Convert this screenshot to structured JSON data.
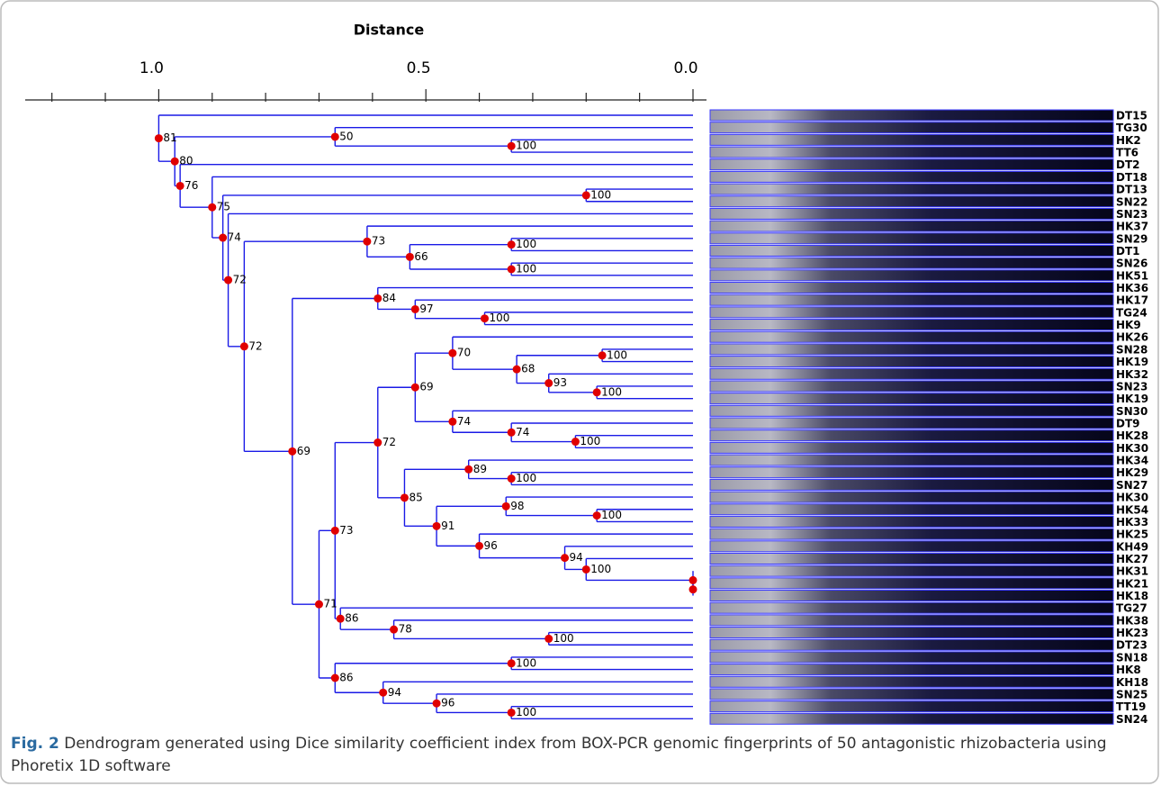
{
  "chart_data": {
    "type": "dendrogram",
    "title": "Distance",
    "xlim": [
      1.25,
      0
    ],
    "xticks": [
      {
        "value": 1,
        "label": "1.0"
      },
      {
        "value": 0.5,
        "label": "0.5"
      },
      {
        "value": 0,
        "label": "0.0"
      }
    ],
    "minor_xticks": [
      1.2,
      1.1,
      0.9,
      0.8,
      0.7,
      0.6,
      0.4,
      0.3,
      0.2,
      0.1
    ],
    "line_color": "#1a1ae6",
    "node_color": "#e00000",
    "leaves": [
      "DT15",
      "TG30",
      "HK2",
      "TT6",
      "DT2",
      "DT18",
      "DT13",
      "SN22",
      "SN23",
      "HK37",
      "SN29",
      "DT1",
      "SN26",
      "HK51",
      "HK36",
      "HK17",
      "TG24",
      "HK9",
      "HK26",
      "SN28",
      "HK19",
      "HK32",
      "SN23",
      "HK19",
      "SN30",
      "DT9",
      "HK28",
      "HK30",
      "HK34",
      "HK29",
      "SN27",
      "HK30",
      "HK54",
      "HK33",
      "HK25",
      "KH49",
      "HK27",
      "HK31",
      "HK21",
      "HK18",
      "TG27",
      "HK38",
      "HK23",
      "DT23",
      "SN18",
      "HK8",
      "KH18",
      "SN25",
      "TT19",
      "SN24"
    ],
    "nodes": [
      {
        "support": 100,
        "distance": 0.34,
        "leaf_children": [
          2,
          3
        ],
        "node_children": []
      },
      {
        "support": 50,
        "distance": 0.67,
        "leaf_children": [
          1
        ],
        "node_children": [
          0
        ]
      },
      {
        "support": 100,
        "distance": 0.2,
        "leaf_children": [
          6,
          7
        ],
        "node_children": []
      },
      {
        "support": 100,
        "distance": 0.34,
        "leaf_children": [
          10,
          11
        ],
        "node_children": []
      },
      {
        "support": 100,
        "distance": 0.34,
        "leaf_children": [
          12,
          13
        ],
        "node_children": []
      },
      {
        "support": 66,
        "distance": 0.53,
        "leaf_children": [],
        "node_children": [
          3,
          4
        ]
      },
      {
        "support": 73,
        "distance": 0.61,
        "leaf_children": [
          9
        ],
        "node_children": [
          5
        ]
      },
      {
        "support": 100,
        "distance": 0.39,
        "leaf_children": [
          16,
          17
        ],
        "node_children": []
      },
      {
        "support": 97,
        "distance": 0.52,
        "leaf_children": [
          15
        ],
        "node_children": [
          7
        ]
      },
      {
        "support": 84,
        "distance": 0.59,
        "leaf_children": [
          14
        ],
        "node_children": [
          8
        ]
      },
      {
        "support": 100,
        "distance": 0.17,
        "leaf_children": [
          19,
          20
        ],
        "node_children": []
      },
      {
        "support": 100,
        "distance": 0.18,
        "leaf_children": [
          22,
          23
        ],
        "node_children": []
      },
      {
        "support": 93,
        "distance": 0.27,
        "leaf_children": [
          21
        ],
        "node_children": [
          11
        ]
      },
      {
        "support": 68,
        "distance": 0.33,
        "leaf_children": [],
        "node_children": [
          10,
          12
        ]
      },
      {
        "support": 70,
        "distance": 0.45,
        "leaf_children": [
          18
        ],
        "node_children": [
          13
        ]
      },
      {
        "support": 100,
        "distance": 0.22,
        "leaf_children": [
          26,
          27
        ],
        "node_children": []
      },
      {
        "support": 74,
        "distance": 0.34,
        "leaf_children": [
          25
        ],
        "node_children": [
          15
        ]
      },
      {
        "support": 74,
        "distance": 0.45,
        "leaf_children": [
          24
        ],
        "node_children": [
          16
        ]
      },
      {
        "support": 69,
        "distance": 0.52,
        "leaf_children": [],
        "node_children": [
          14,
          17
        ]
      },
      {
        "support": 100,
        "distance": 0.34,
        "leaf_children": [
          29,
          30
        ],
        "node_children": []
      },
      {
        "support": 89,
        "distance": 0.42,
        "leaf_children": [
          28
        ],
        "node_children": [
          19
        ]
      },
      {
        "support": 100,
        "distance": 0.18,
        "leaf_children": [
          32,
          33
        ],
        "node_children": []
      },
      {
        "support": 98,
        "distance": 0.35,
        "leaf_children": [
          31
        ],
        "node_children": [
          21
        ]
      },
      {
        "distance": 0,
        "leaf_children": [
          38,
          39
        ],
        "node_children": []
      },
      {
        "distance": 0,
        "leaf_children": [
          37
        ],
        "node_children": [
          23
        ]
      },
      {
        "support": 100,
        "distance": 0.2,
        "leaf_children": [
          36
        ],
        "node_children": [
          24
        ]
      },
      {
        "support": 94,
        "distance": 0.24,
        "leaf_children": [
          35
        ],
        "node_children": [
          25
        ]
      },
      {
        "support": 96,
        "distance": 0.4,
        "leaf_children": [
          34
        ],
        "node_children": [
          26
        ]
      },
      {
        "support": 91,
        "distance": 0.48,
        "leaf_children": [],
        "node_children": [
          22,
          27
        ]
      },
      {
        "support": 85,
        "distance": 0.54,
        "leaf_children": [],
        "node_children": [
          20,
          28
        ]
      },
      {
        "support": 72,
        "distance": 0.59,
        "leaf_children": [],
        "node_children": [
          18,
          29
        ]
      },
      {
        "support": 100,
        "distance": 0.27,
        "leaf_children": [
          42,
          43
        ],
        "node_children": []
      },
      {
        "support": 78,
        "distance": 0.56,
        "leaf_children": [
          41
        ],
        "node_children": [
          31
        ]
      },
      {
        "support": 86,
        "distance": 0.66,
        "leaf_children": [
          40
        ],
        "node_children": [
          32
        ]
      },
      {
        "support": 73,
        "distance": 0.67,
        "leaf_children": [],
        "node_children": [
          30,
          33
        ]
      },
      {
        "support": 100,
        "distance": 0.34,
        "leaf_children": [
          44,
          45
        ],
        "node_children": []
      },
      {
        "support": 100,
        "distance": 0.34,
        "leaf_children": [
          48,
          49
        ],
        "node_children": []
      },
      {
        "support": 96,
        "distance": 0.48,
        "leaf_children": [
          47
        ],
        "node_children": [
          36
        ]
      },
      {
        "support": 94,
        "distance": 0.58,
        "leaf_children": [
          46
        ],
        "node_children": [
          37
        ]
      },
      {
        "support": 86,
        "distance": 0.67,
        "leaf_children": [],
        "node_children": [
          35,
          38
        ]
      },
      {
        "support": 71,
        "distance": 0.7,
        "leaf_children": [],
        "node_children": [
          34,
          39
        ]
      },
      {
        "support": 69,
        "distance": 0.75,
        "leaf_children": [],
        "node_children": [
          9,
          40
        ]
      },
      {
        "support": 72,
        "distance": 0.84,
        "leaf_children": [],
        "node_children": [
          6,
          41
        ]
      },
      {
        "support": 72,
        "distance": 0.87,
        "leaf_children": [
          8
        ],
        "node_children": [
          42
        ]
      },
      {
        "support": 74,
        "distance": 0.88,
        "leaf_children": [],
        "node_children": [
          2,
          43
        ]
      },
      {
        "support": 75,
        "distance": 0.9,
        "leaf_children": [
          5
        ],
        "node_children": [
          44
        ]
      },
      {
        "support": 76,
        "distance": 0.96,
        "leaf_children": [
          4
        ],
        "node_children": [
          45
        ]
      },
      {
        "support": 80,
        "distance": 0.97,
        "leaf_children": [],
        "node_children": [
          1,
          46
        ]
      },
      {
        "support": 81,
        "distance": 1.0,
        "leaf_children": [
          0
        ],
        "node_children": [
          47
        ]
      }
    ]
  },
  "caption": {
    "label": "Fig. 2",
    "text": "Dendrogram generated using Dice similarity coefficient index from BOX-PCR genomic fingerprints of 50 antagonistic rhizobacteria using Phoretix 1D software"
  }
}
